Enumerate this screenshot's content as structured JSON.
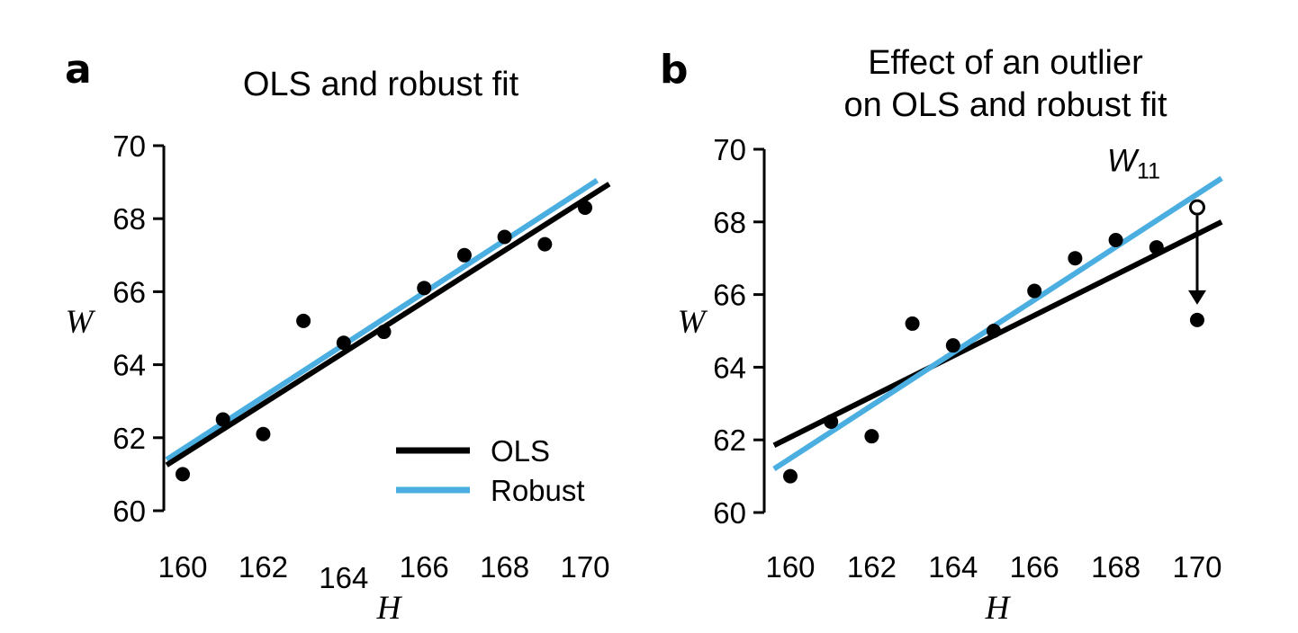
{
  "colors": {
    "ols": "#000000",
    "robust": "#4aaee0",
    "points": "#000000"
  },
  "chart_data": [
    {
      "panel": "a",
      "type": "scatter",
      "title": [
        "OLS and robust fit"
      ],
      "xlabel": "H",
      "ylabel": "W",
      "xlim": [
        159.6,
        170.6
      ],
      "ylim": [
        60,
        70
      ],
      "xticks": [
        "160",
        "162",
        "164",
        "166",
        "168",
        "170"
      ],
      "yticks": [
        "60",
        "62",
        "64",
        "66",
        "68",
        "70"
      ],
      "points": [
        {
          "x": 160,
          "y": 61.0
        },
        {
          "x": 161,
          "y": 62.5
        },
        {
          "x": 162,
          "y": 62.1
        },
        {
          "x": 163,
          "y": 65.2
        },
        {
          "x": 164,
          "y": 64.6
        },
        {
          "x": 165,
          "y": 64.9
        },
        {
          "x": 166,
          "y": 66.1
        },
        {
          "x": 167,
          "y": 67.0
        },
        {
          "x": 168,
          "y": 67.5
        },
        {
          "x": 169,
          "y": 67.3
        },
        {
          "x": 170,
          "y": 68.3
        }
      ],
      "series": [
        {
          "name": "OLS",
          "line": [
            [
              159.6,
              61.25
            ],
            [
              170.6,
              68.95
            ]
          ]
        },
        {
          "name": "Robust",
          "line": [
            [
              159.6,
              61.4
            ],
            [
              170.3,
              69.05
            ]
          ]
        }
      ],
      "legend": [
        "OLS",
        "Robust"
      ],
      "legend_position": "bottom-right",
      "grid": false
    },
    {
      "panel": "b",
      "type": "scatter",
      "title": [
        "Effect of an outlier",
        "on OLS and robust fit"
      ],
      "xlabel": "H",
      "ylabel": "W",
      "xlim": [
        159.6,
        170.6
      ],
      "ylim": [
        60,
        70
      ],
      "xticks": [
        "160",
        "162",
        "164",
        "166",
        "168",
        "170"
      ],
      "yticks": [
        "60",
        "62",
        "64",
        "66",
        "68",
        "70"
      ],
      "points": [
        {
          "x": 160,
          "y": 61.0
        },
        {
          "x": 161,
          "y": 62.5
        },
        {
          "x": 162,
          "y": 62.1
        },
        {
          "x": 163,
          "y": 65.2
        },
        {
          "x": 164,
          "y": 64.6
        },
        {
          "x": 165,
          "y": 65.0
        },
        {
          "x": 166,
          "y": 66.1
        },
        {
          "x": 167,
          "y": 67.0
        },
        {
          "x": 168,
          "y": 67.5
        },
        {
          "x": 169,
          "y": 67.3
        },
        {
          "x": 170,
          "y": 65.3
        }
      ],
      "outlier_original": {
        "x": 170,
        "y": 68.4
      },
      "annotation": {
        "main": "W",
        "sub": "11"
      },
      "series": [
        {
          "name": "OLS",
          "line": [
            [
              159.6,
              61.85
            ],
            [
              170.6,
              68.0
            ]
          ]
        },
        {
          "name": "Robust",
          "line": [
            [
              159.6,
              61.2
            ],
            [
              170.6,
              69.2
            ]
          ]
        }
      ],
      "grid": false
    }
  ]
}
